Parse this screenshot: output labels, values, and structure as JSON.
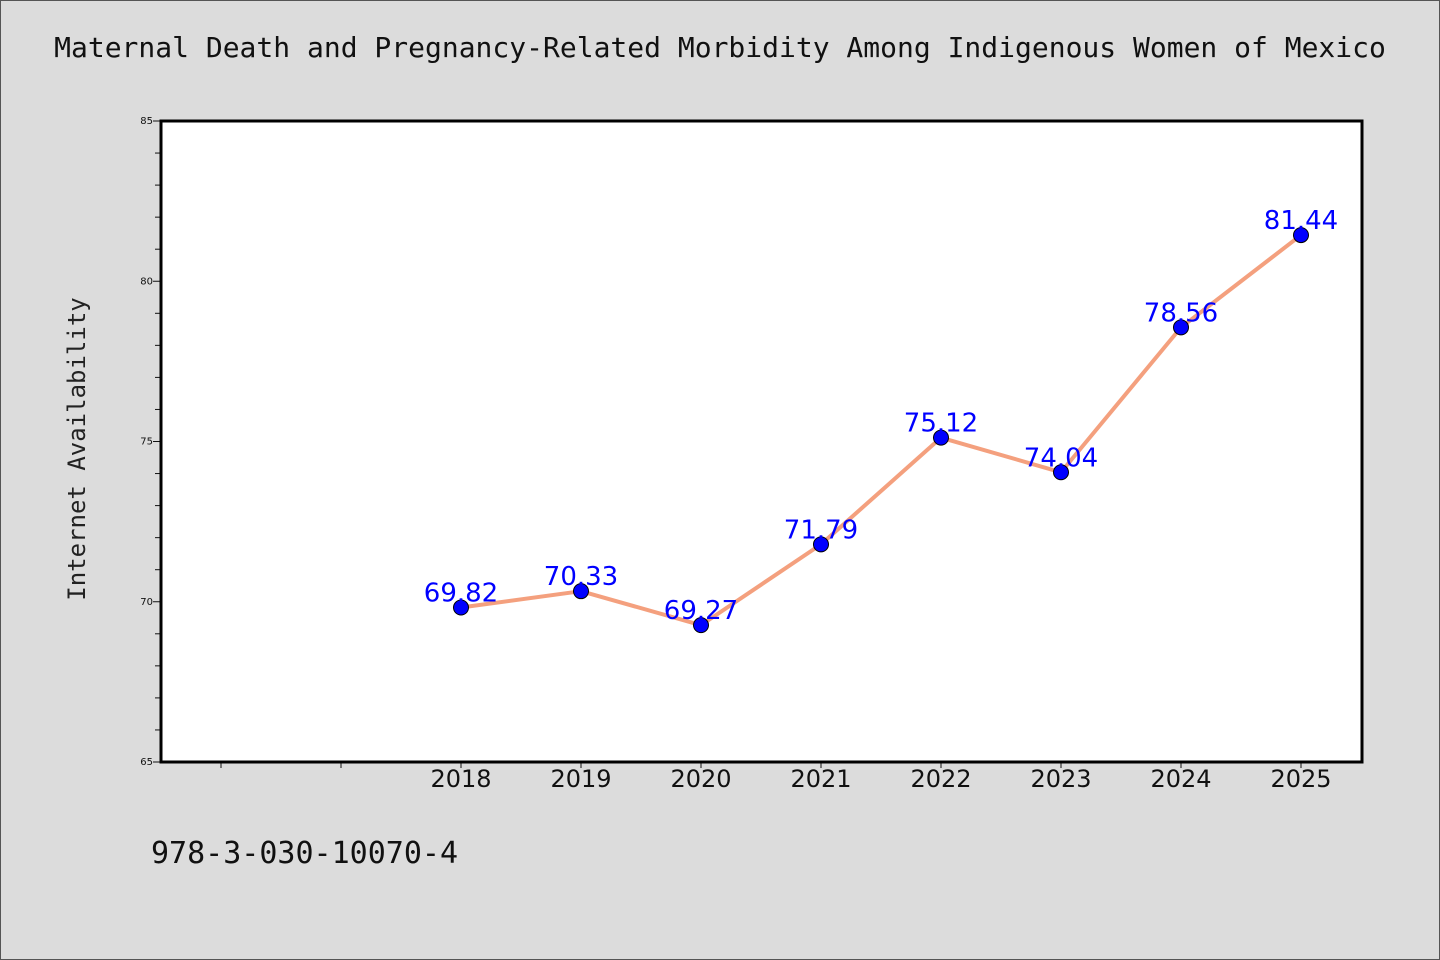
{
  "chart_data": {
    "type": "line",
    "title": "Maternal Death and Pregnancy-Related Morbidity Among Indigenous Women of Mexico",
    "xlabel": "",
    "ylabel": "Internet Availability",
    "categories": [
      "2018",
      "2019",
      "2020",
      "2021",
      "2022",
      "2023",
      "2024",
      "2025"
    ],
    "x_slots": 10,
    "first_category_slot": 2,
    "series": [
      {
        "values": [
          69.82,
          70.33,
          69.27,
          71.79,
          75.12,
          74.04,
          78.56,
          81.44
        ],
        "labels": [
          "69.82",
          "70.33",
          "69.27",
          "71.79",
          "75.12",
          "74.04",
          "78.56",
          "81.44"
        ],
        "line_color": "#f4a07e",
        "marker_color": "#0000ff"
      }
    ],
    "ylim": [
      65,
      85
    ],
    "y_ticks": [
      "65",
      "70",
      "75",
      "80",
      "85"
    ],
    "y_minor_step": 1,
    "grid": false,
    "legend": "none"
  },
  "footer": {
    "code": "978-3-030-10070-4"
  }
}
